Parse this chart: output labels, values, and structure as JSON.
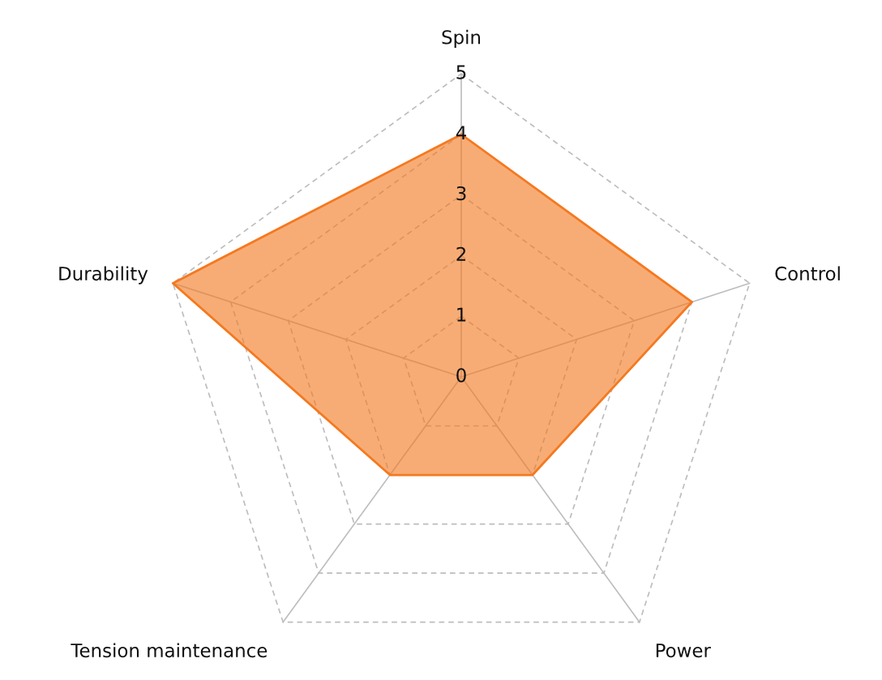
{
  "chart_data": {
    "type": "radar",
    "categories": [
      "Spin",
      "Control",
      "Power",
      "Tension maintenance",
      "Durability"
    ],
    "series": [
      {
        "color": "#f47920",
        "values": [
          4,
          4,
          2,
          2,
          5
        ]
      }
    ],
    "ylim": [
      0,
      5
    ],
    "yticks": [
      0,
      1,
      2,
      3,
      4,
      5
    ],
    "grid": true
  }
}
